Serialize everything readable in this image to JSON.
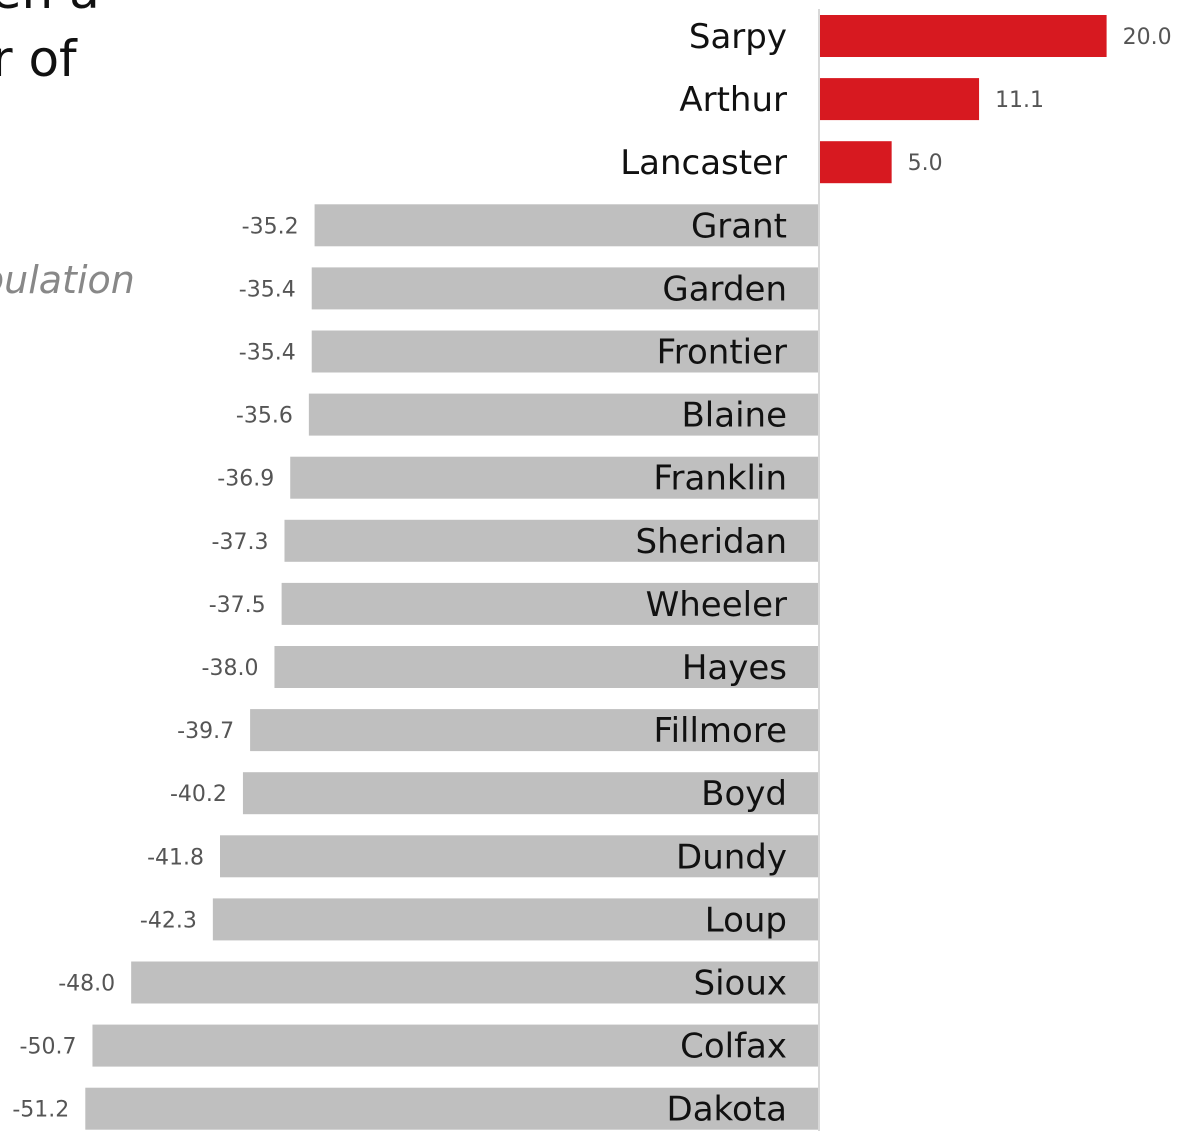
{
  "title_fragments": [
    "een a",
    "r of"
  ],
  "subtitle_fragment": "pulation",
  "colors": {
    "positive": "#d71920",
    "negative": "#bfbfbf",
    "axis": "#cccccc",
    "label": "#111111",
    "value": "#555555"
  },
  "chart_data": {
    "type": "bar",
    "orientation": "horizontal",
    "title": "",
    "xlabel": "",
    "ylabel": "",
    "categories": [
      "Sarpy",
      "Arthur",
      "Lancaster",
      "Grant",
      "Garden",
      "Frontier",
      "Blaine",
      "Franklin",
      "Sheridan",
      "Wheeler",
      "Hayes",
      "Fillmore",
      "Boyd",
      "Dundy",
      "Loup",
      "Sioux",
      "Colfax",
      "Dakota"
    ],
    "values": [
      20.0,
      11.1,
      5.0,
      -35.2,
      -35.4,
      -35.4,
      -35.6,
      -36.9,
      -37.3,
      -37.5,
      -38.0,
      -39.7,
      -40.2,
      -41.8,
      -42.3,
      -48.0,
      -50.7,
      -51.2
    ],
    "value_labels": [
      "20.0",
      "11.1",
      "5.0",
      "-35.2",
      "-35.4",
      "-35.4",
      "-35.6",
      "-36.9",
      "-37.3",
      "-37.5",
      "-38.0",
      "-39.7",
      "-40.2",
      "-41.8",
      "-42.3",
      "-48.0",
      "-50.7",
      "-51.2"
    ],
    "grid": false,
    "legend": "none"
  }
}
